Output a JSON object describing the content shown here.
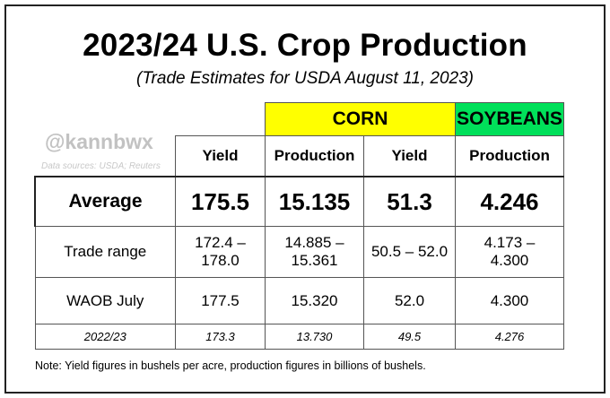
{
  "header": {
    "title": "2023/24 U.S. Crop Production",
    "subtitle": "(Trade Estimates for USDA August 11, 2023)"
  },
  "watermark": {
    "handle": "@kannbwx",
    "sources": "Data sources: USDA; Reuters"
  },
  "table": {
    "groups": [
      "CORN",
      "SOYBEANS"
    ],
    "group_colors": {
      "CORN": "#ffff00",
      "SOYBEANS": "#00e05a"
    },
    "subheaders": [
      "Yield",
      "Production",
      "Yield",
      "Production"
    ],
    "rows": [
      {
        "label": "Average",
        "values": [
          "175.5",
          "15.135",
          "51.3",
          "4.246"
        ]
      },
      {
        "label": "Trade range",
        "values": [
          "172.4 – 178.0",
          "14.885 – 15.361",
          "50.5 – 52.0",
          "4.173 – 4.300"
        ]
      },
      {
        "label": "WAOB July",
        "values": [
          "177.5",
          "15.320",
          "52.0",
          "4.300"
        ]
      },
      {
        "label": "2022/23",
        "values": [
          "173.3",
          "13.730",
          "49.5",
          "4.276"
        ]
      }
    ]
  },
  "footnote": "Note: Yield figures in bushels per acre, production figures in billions of bushels."
}
